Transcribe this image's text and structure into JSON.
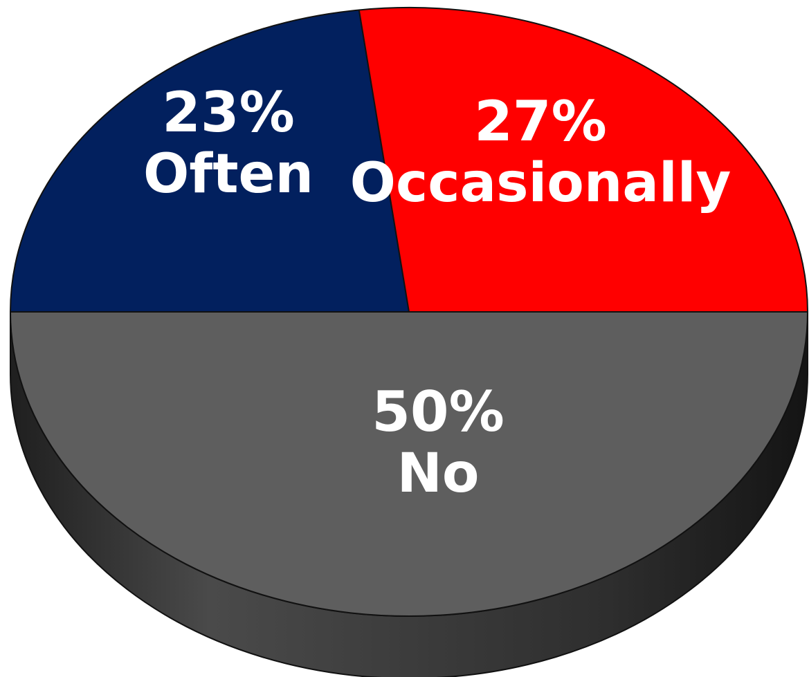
{
  "chart_data": {
    "type": "pie",
    "style": "3d",
    "title": "",
    "slices": [
      {
        "label": "Often",
        "value": 23,
        "value_label": "23%",
        "color": "#02205E"
      },
      {
        "label": "Occasionally",
        "value": 27,
        "value_label": "27%",
        "color": "#FF0000"
      },
      {
        "label": "No",
        "value": 50,
        "value_label": "50%",
        "color": "#5E5E5E"
      }
    ],
    "side_color": "#3A3A3A",
    "outline_color": "#111111",
    "legend": "none"
  }
}
